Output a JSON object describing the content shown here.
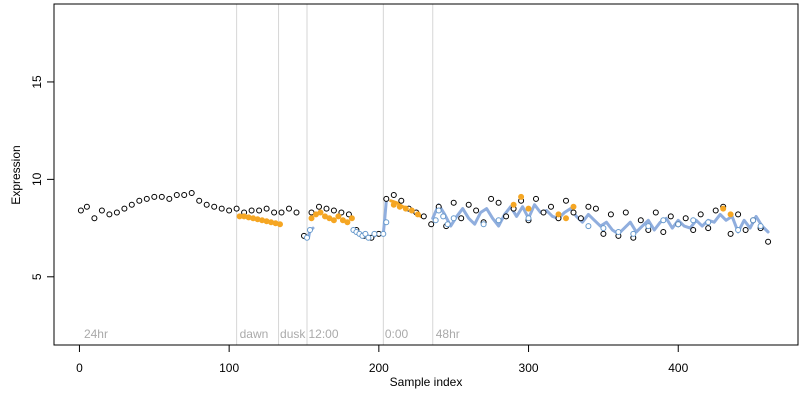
{
  "chart_data": {
    "type": "scatter",
    "title": "",
    "xlabel": "Sample index",
    "ylabel": "Expression",
    "xlim": [
      -17,
      480
    ],
    "ylim": [
      1.5,
      19
    ],
    "x_ticks": [
      0,
      100,
      200,
      300,
      400
    ],
    "y_ticks": [
      5,
      10,
      15
    ],
    "grid": false,
    "legend": "none",
    "colors": {
      "points": "#000000",
      "point_fill": "#ffffff",
      "orange": "#f5a623",
      "blue": "#6699cc",
      "blue_line": "#90aede",
      "vlines": "#d6d6d6",
      "annotation_text": "#aaaaaa"
    },
    "annotations": [
      {
        "label": "24hr",
        "x": 3
      },
      {
        "label": "dawn",
        "x": 107
      },
      {
        "label": "dusk",
        "x": 134
      },
      {
        "label": "12:00",
        "x": 153
      },
      {
        "label": "0:00",
        "x": 204
      },
      {
        "label": "48hr",
        "x": 238
      }
    ],
    "vertical_lines": [
      105,
      133,
      152,
      203,
      236
    ],
    "series": [
      {
        "style": "black",
        "x": [
          1,
          5,
          10,
          15,
          20,
          25,
          30,
          35,
          40,
          45,
          50,
          55,
          60,
          65,
          70,
          75,
          80,
          85,
          90,
          95,
          100,
          105,
          110,
          115,
          120,
          125,
          130,
          135,
          140,
          145,
          150,
          155,
          160,
          165,
          170,
          175,
          180,
          185,
          190,
          195,
          200,
          205,
          210,
          215,
          220,
          225,
          230,
          235,
          240,
          245,
          250,
          255,
          260,
          265,
          270,
          275,
          280,
          285,
          290,
          295,
          300,
          305,
          310,
          315,
          320,
          325,
          330,
          335,
          340,
          345,
          350,
          355,
          360,
          365,
          370,
          375,
          380,
          385,
          390,
          395,
          400,
          405,
          410,
          415,
          420,
          425,
          430,
          435,
          440,
          445,
          450,
          455,
          460
        ],
        "y": [
          8.4,
          8.6,
          8.0,
          8.4,
          8.2,
          8.3,
          8.5,
          8.7,
          8.9,
          9.0,
          9.1,
          9.1,
          9.0,
          9.2,
          9.2,
          9.3,
          8.9,
          8.7,
          8.6,
          8.5,
          8.4,
          8.5,
          8.3,
          8.4,
          8.4,
          8.5,
          8.3,
          8.3,
          8.5,
          8.3,
          7.1,
          8.3,
          8.6,
          8.5,
          8.4,
          8.3,
          8.2,
          7.4,
          7.1,
          7.0,
          7.2,
          9.0,
          9.2,
          8.9,
          8.5,
          8.3,
          8.1,
          7.7,
          8.6,
          7.6,
          8.8,
          8.0,
          8.7,
          8.4,
          7.8,
          9.0,
          8.8,
          8.1,
          8.5,
          8.9,
          7.9,
          9.0,
          8.3,
          8.6,
          8.0,
          8.9,
          8.3,
          8.0,
          8.6,
          8.5,
          7.2,
          8.2,
          7.1,
          8.3,
          7.0,
          7.9,
          7.4,
          8.3,
          7.3,
          8.1,
          7.7,
          8.0,
          7.4,
          8.2,
          7.5,
          8.4,
          8.6,
          7.2,
          8.2,
          7.4,
          7.9,
          7.5,
          6.8
        ]
      },
      {
        "style": "orange",
        "x": [
          107,
          110,
          113,
          116,
          119,
          122,
          125,
          128,
          131,
          134,
          155,
          158,
          161,
          164,
          167,
          170,
          173,
          176,
          179,
          182,
          210,
          214,
          218,
          222,
          226,
          290,
          295,
          300,
          320,
          325,
          330,
          430,
          435
        ],
        "y": [
          8.1,
          8.1,
          8.05,
          8.0,
          7.95,
          7.9,
          7.85,
          7.8,
          7.75,
          7.7,
          8.0,
          8.2,
          8.3,
          8.1,
          8.0,
          7.9,
          8.1,
          7.9,
          7.8,
          8.0,
          8.7,
          8.6,
          8.5,
          8.4,
          8.2,
          8.7,
          9.1,
          8.5,
          8.2,
          8.0,
          8.6,
          8.5,
          8.2
        ]
      },
      {
        "style": "blue",
        "x": [
          152,
          154,
          183,
          185,
          187,
          189,
          191,
          193,
          197,
          203,
          205,
          238,
          240,
          243,
          246,
          250,
          270,
          280,
          300,
          340,
          350,
          360,
          370,
          380,
          390,
          400,
          410,
          420,
          440,
          450,
          455
        ],
        "y": [
          7.0,
          7.4,
          7.4,
          7.3,
          7.2,
          7.1,
          7.2,
          7.0,
          7.2,
          7.2,
          7.8,
          7.9,
          8.4,
          8.1,
          7.7,
          8.0,
          7.7,
          7.9,
          8.0,
          7.6,
          7.5,
          7.3,
          7.2,
          7.6,
          7.9,
          7.7,
          7.9,
          7.8,
          7.4,
          7.9,
          7.6
        ]
      }
    ],
    "fitted_segments": [
      {
        "color": "orange",
        "x": [
          107,
          110,
          113,
          116,
          119,
          122,
          125,
          128,
          131,
          134
        ],
        "y": [
          8.1,
          8.1,
          8.05,
          8.0,
          7.95,
          7.9,
          7.85,
          7.8,
          7.75,
          7.7
        ]
      },
      {
        "color": "blue",
        "x": [
          152,
          153,
          154,
          156
        ],
        "y": [
          7.1,
          7.0,
          7.4,
          7.5
        ]
      },
      {
        "color": "blue",
        "x": [
          183,
          185,
          187,
          189,
          191,
          193,
          195,
          197,
          199,
          201,
          203
        ],
        "y": [
          7.4,
          7.3,
          7.2,
          7.2,
          7.1,
          7.1,
          7.0,
          7.1,
          7.2,
          7.2,
          7.2
        ]
      },
      {
        "color": "blue",
        "x": [
          203,
          204,
          205
        ],
        "y": [
          7.2,
          8.0,
          8.9
        ]
      },
      {
        "color": "orange",
        "x": [
          208,
          212,
          216,
          220,
          224,
          228
        ],
        "y": [
          8.9,
          8.8,
          8.6,
          8.5,
          8.3,
          8.1
        ]
      },
      {
        "color": "blue",
        "x": [
          236,
          240,
          244,
          248,
          252,
          256,
          260,
          264,
          268,
          272,
          276,
          280,
          284,
          288,
          292,
          296,
          300,
          304,
          308,
          312,
          316,
          320,
          324,
          328,
          332,
          336,
          340,
          344,
          348,
          352,
          356,
          360,
          364,
          368,
          372,
          376,
          380,
          384,
          388,
          392,
          396,
          400,
          404,
          408,
          412,
          416,
          420,
          424,
          428,
          432,
          436,
          440,
          444,
          448,
          452,
          456,
          460
        ],
        "y": [
          8.0,
          8.7,
          8.2,
          7.6,
          8.1,
          8.5,
          8.0,
          7.7,
          8.3,
          8.5,
          8.0,
          7.6,
          8.2,
          8.6,
          8.1,
          8.6,
          8.0,
          8.7,
          8.3,
          8.4,
          8.1,
          8.0,
          8.3,
          8.5,
          8.1,
          7.8,
          8.2,
          7.9,
          7.6,
          7.8,
          7.4,
          7.2,
          7.5,
          7.8,
          7.3,
          7.6,
          7.9,
          7.4,
          7.8,
          8.0,
          7.5,
          7.9,
          7.6,
          7.5,
          7.9,
          7.6,
          7.9,
          7.8,
          8.2,
          7.9,
          8.1,
          7.3,
          7.9,
          7.5,
          8.1,
          7.6,
          7.3
        ]
      }
    ]
  }
}
